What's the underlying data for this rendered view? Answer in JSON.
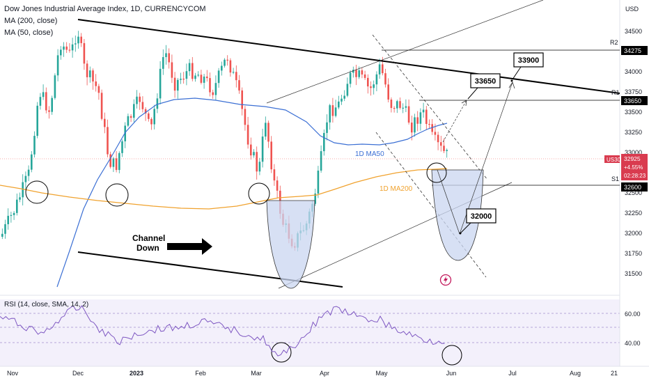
{
  "header": {
    "title": "Dow Jones Industrial Average Index, 1D, CURRENCYCOM",
    "ma200_label": "MA (200, close)",
    "ma50_label": "MA (50, close)"
  },
  "price_axis": {
    "currency": "USD",
    "ticks": [
      "34500",
      "34250",
      "34000",
      "33750",
      "33500",
      "33250",
      "33000",
      "32750",
      "32500",
      "32250",
      "32000",
      "31750",
      "31500"
    ]
  },
  "time_axis": {
    "ticks": [
      "Nov",
      "Dec",
      "2023",
      "Feb",
      "Mar",
      "Apr",
      "May",
      "Jun",
      "Jul",
      "Aug",
      "21"
    ]
  },
  "rsi": {
    "label": "RSI (14, close, SMA, 14, 2)",
    "ticks": [
      "60.00",
      "40.00"
    ]
  },
  "levels": {
    "r2": {
      "name": "R2",
      "value": "34275"
    },
    "r1": {
      "name": "R1",
      "value": "33650"
    },
    "s1": {
      "name": "S1",
      "value": "32600"
    }
  },
  "current_price": {
    "symbol": "US30",
    "price": "32925",
    "change": "+4.55%",
    "countdown": "02:28:23"
  },
  "annotations": {
    "target_high": "33900",
    "target_mid": "33650",
    "target_low": "32000",
    "ma50_label": "1D MA50",
    "ma200_label": "1D MA200",
    "channel_label_1": "Channel",
    "channel_label_2": "Down"
  },
  "colors": {
    "up": "#26a69a",
    "down": "#ef5350",
    "ma50": "#3b6fd4",
    "ma200": "#f0a22e",
    "rsi_line": "#7e57c2",
    "price_tag": "#d93b4f"
  },
  "icons": {
    "lightning": "lightning-icon"
  }
}
